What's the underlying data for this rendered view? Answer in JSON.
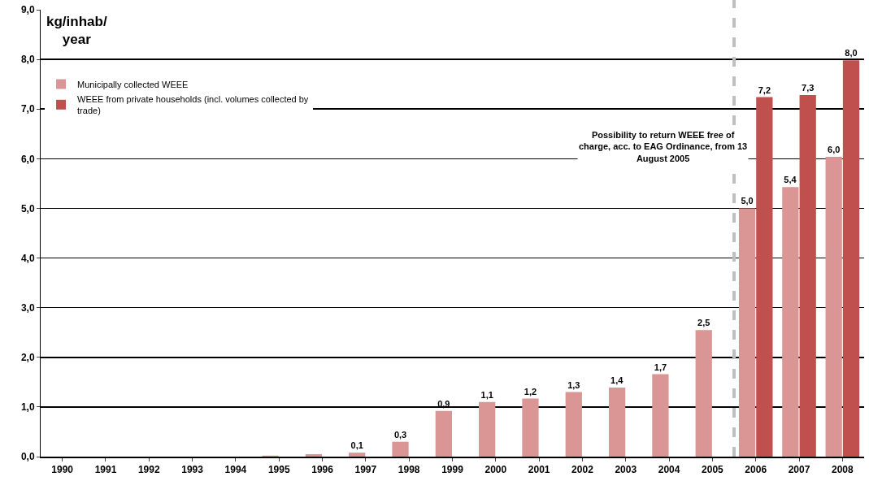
{
  "chart_data": {
    "type": "bar",
    "ylabel": "kg/inhab/ year",
    "x": [
      1990,
      1991,
      1992,
      1993,
      1994,
      1995,
      1996,
      1997,
      1998,
      1999,
      2000,
      2001,
      2002,
      2003,
      2004,
      2005,
      2006,
      2007,
      2008
    ],
    "xlim": [
      1989.5,
      2008.5
    ],
    "xticks": [
      1990,
      1991,
      1992,
      1993,
      1994,
      1995,
      1996,
      1997,
      1998,
      1999,
      2000,
      2001,
      2002,
      2003,
      2004,
      2005,
      2006,
      2007,
      2008
    ],
    "ylim": [
      0,
      9
    ],
    "yticks": [
      {
        "value": 0,
        "label": "0,0"
      },
      {
        "value": 1,
        "label": "1,0"
      },
      {
        "value": 2,
        "label": "2,0"
      },
      {
        "value": 3,
        "label": "3,0"
      },
      {
        "value": 4,
        "label": "4,0"
      },
      {
        "value": 5,
        "label": "5,0"
      },
      {
        "value": 6,
        "label": "6,0"
      },
      {
        "value": 7,
        "label": "7,0"
      },
      {
        "value": 8,
        "label": "8,0"
      },
      {
        "value": 9,
        "label": "9,0"
      }
    ],
    "series": [
      {
        "name": "Municipally collected WEEE",
        "color": "#d99694",
        "values": [
          0,
          0,
          0,
          0,
          0,
          0.02,
          0.05,
          0.08,
          0.3,
          0.92,
          1.1,
          1.17,
          1.3,
          1.39,
          1.66,
          2.55,
          5.0,
          5.43,
          6.04
        ],
        "value_labels": [
          null,
          null,
          null,
          null,
          null,
          null,
          null,
          "0,1",
          "0,3",
          "0,9",
          "1,1",
          "1,2",
          "1,3",
          "1,4",
          "1,7",
          "2,5",
          "5,0",
          "5,4",
          "6,0"
        ]
      },
      {
        "name": "WEEE from private households (incl. volumes collected by trade)",
        "color": "#c0504d",
        "values": [
          null,
          null,
          null,
          null,
          null,
          null,
          null,
          null,
          null,
          null,
          null,
          null,
          null,
          null,
          null,
          null,
          7.24,
          7.28,
          7.98
        ],
        "value_labels": [
          null,
          null,
          null,
          null,
          null,
          null,
          null,
          null,
          null,
          null,
          null,
          null,
          null,
          null,
          null,
          null,
          "7,2",
          "7,3",
          "8,0"
        ]
      }
    ],
    "ref_lines": [
      {
        "axis": "x",
        "value": 2005.5,
        "color": "#bfbfbf",
        "line_style": "dashed"
      }
    ],
    "annotations": [
      "Possibility to return WEEE free of charge, acc. to EAG Ordinance, from 13 August 2005"
    ],
    "grid": "y",
    "legend": "top left"
  }
}
